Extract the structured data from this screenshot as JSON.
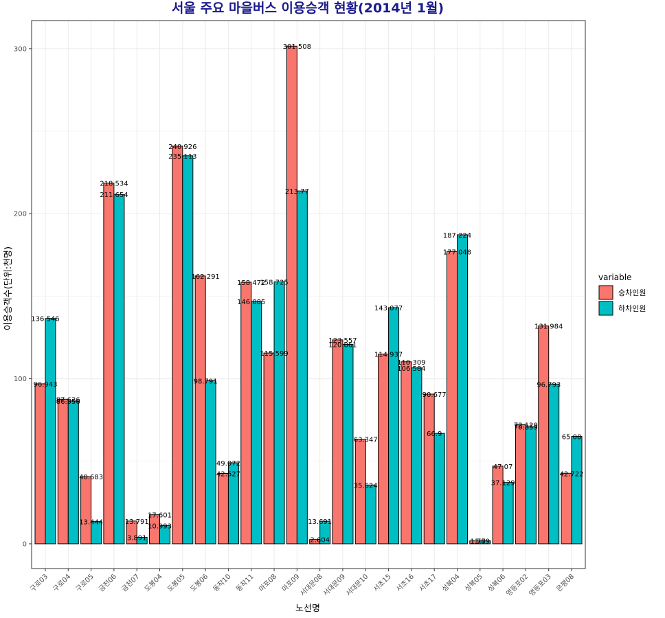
{
  "chart_data": {
    "type": "bar",
    "title": "서울 주요 마을버스 이용승객 현황(2014년 1월)",
    "xlabel": "노선명",
    "ylabel": "이용승객수(단위:천명)",
    "categories": [
      "구로03",
      "구로04",
      "구로05",
      "금천06",
      "금천07",
      "도봉04",
      "도봉05",
      "도봉06",
      "동작10",
      "동작11",
      "마포08",
      "마포09",
      "서대문08",
      "서대문09",
      "서대문10",
      "서초15",
      "서초16",
      "서초17",
      "성북04",
      "성북05",
      "성북06",
      "영등포02",
      "영등포03",
      "은평08"
    ],
    "series": [
      {
        "name": "승차인원",
        "color": "#F8766D",
        "values": [
          96.943,
          87.626,
          40.683,
          218.534,
          13.791,
          17.601,
          240.926,
          162.291,
          42.627,
          158.472,
          115.599,
          301.508,
          2.604,
          123.557,
          63.347,
          114.937,
          110.309,
          90.677,
          177.048,
          1.779,
          47.07,
          72.129,
          131.984,
          42.722
        ]
      },
      {
        "name": "하차인원",
        "color": "#00BFC4",
        "values": [
          136.546,
          86.556,
          13.444,
          211.654,
          3.891,
          10.993,
          235.113,
          98.791,
          49.072,
          146.885,
          158.725,
          213.77,
          13.691,
          120.861,
          35.624,
          143.077,
          106.584,
          66.9,
          187.224,
          1.8,
          37.129,
          70.859,
          96.793,
          65.08
        ]
      }
    ],
    "data_labels": {
      "승차인원": [
        "96.943",
        "87.626",
        "40.683",
        "218.534",
        "13.791",
        "17.601",
        "240.926",
        "162.291",
        "42.627",
        "158.472",
        "115.599",
        "301.508",
        "2.604",
        "123.557",
        "63.347",
        "114.937",
        "110.309",
        "90.677",
        "177.048",
        "1.779",
        "47.07",
        "72.129",
        "131.984",
        "42.722"
      ],
      "하차인원": [
        "136.546",
        "86.556",
        "13.444",
        "211.654",
        "3.891",
        "10.993",
        "235.113",
        "98.791",
        "49.072",
        "146.885",
        "158.725",
        "213.77",
        "13.691",
        "120.861",
        "35.624",
        "143.077",
        "106.584",
        "66.9",
        "187.224",
        "1.8",
        "37.129",
        "70.859",
        "96.793",
        "65.08"
      ]
    },
    "yticks": [
      0,
      100,
      200,
      300
    ],
    "ylim": [
      -15,
      317
    ],
    "grid": true,
    "legend": {
      "title": "variable",
      "position": "right"
    }
  }
}
